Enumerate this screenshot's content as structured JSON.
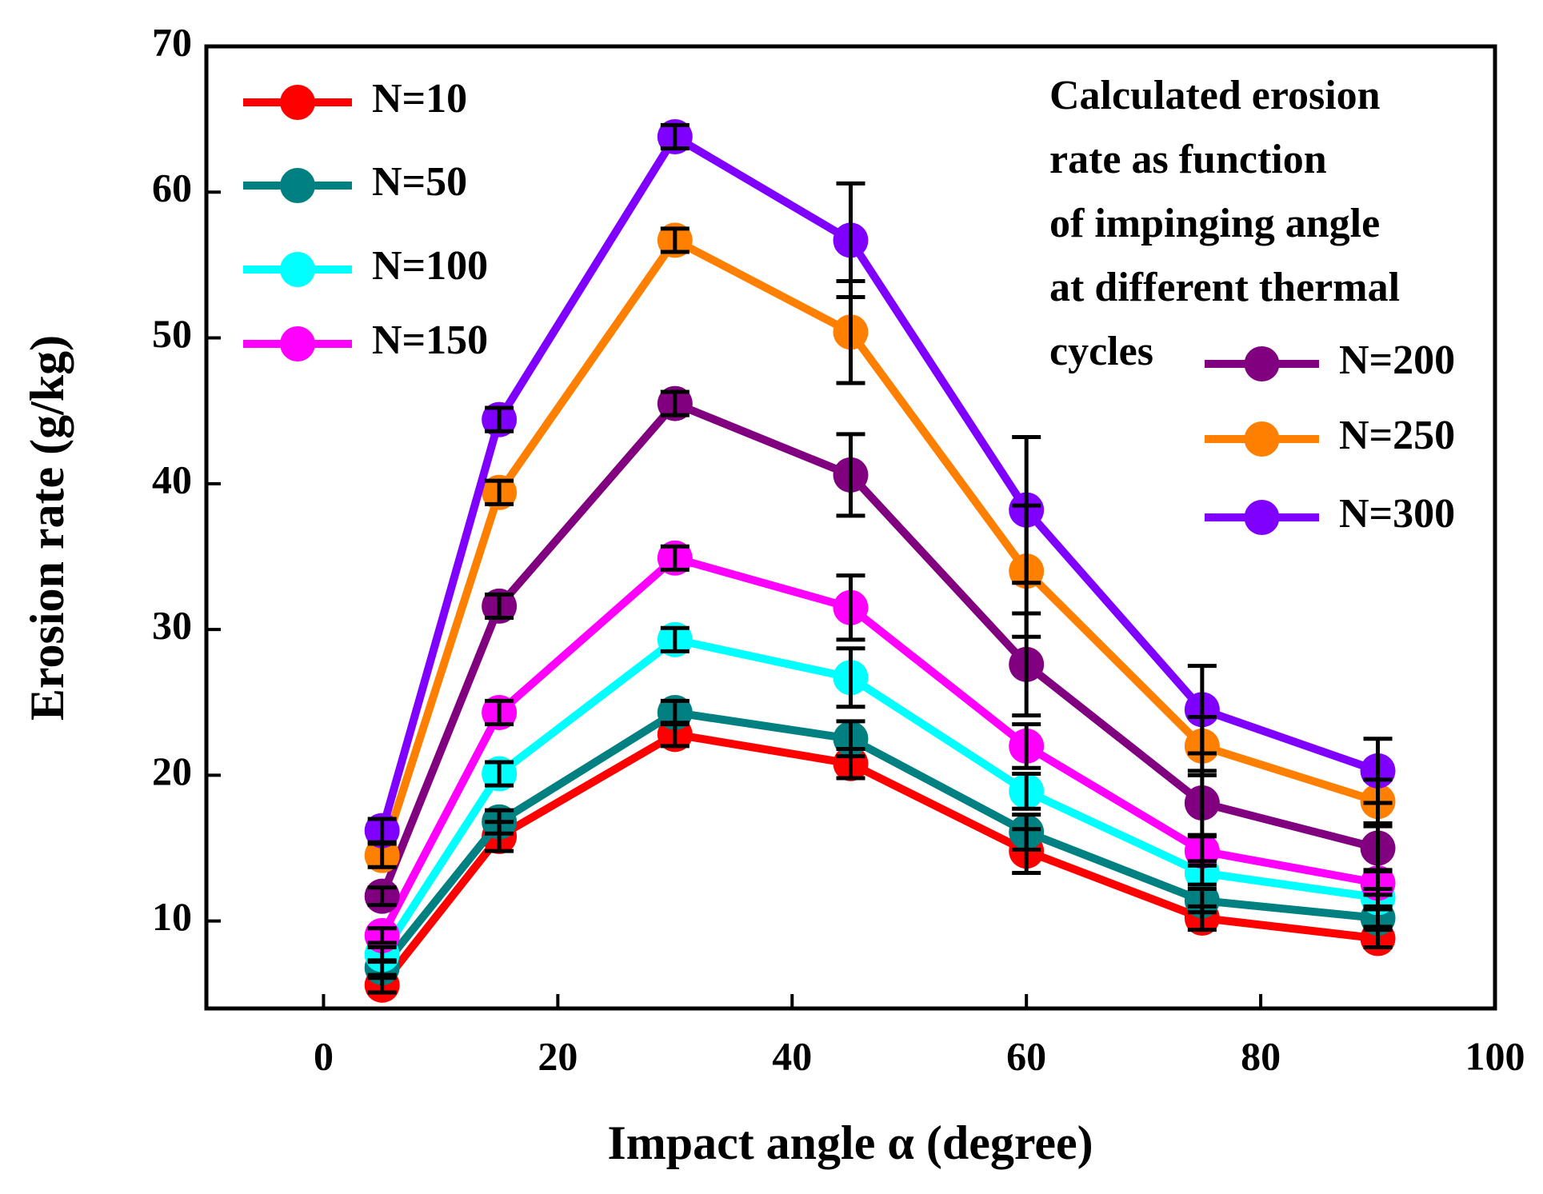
{
  "chart_data": {
    "type": "line",
    "x_label": "Impact angle α (degree)",
    "y_label": "Erosion rate (g/kg)",
    "annotation": [
      "Calculated erosion",
      "rate as function",
      "of impinging angle",
      "at different thermal",
      "cycles"
    ],
    "x": [
      5,
      15,
      30,
      45,
      60,
      75,
      90
    ],
    "xlim": [
      -10,
      100
    ],
    "xticks": [
      0,
      20,
      40,
      60,
      80,
      100
    ],
    "ylim": [
      4,
      70
    ],
    "yticks": [
      10,
      20,
      30,
      40,
      50,
      60,
      70
    ],
    "series": [
      {
        "name": "N=10",
        "color": "#ff0000",
        "values": [
          5.6,
          15.8,
          22.8,
          20.8,
          14.8,
          10.2,
          8.8
        ],
        "errors": [
          0.5,
          1,
          0.8,
          1,
          1.5,
          0.8,
          0.6
        ]
      },
      {
        "name": "N=50",
        "color": "#008080",
        "values": [
          6.8,
          16.8,
          24.3,
          22.5,
          16.1,
          11.4,
          10.2
        ],
        "errors": [
          0.5,
          0.8,
          0.8,
          1.2,
          1.2,
          0.8,
          0.6
        ]
      },
      {
        "name": "N=100",
        "color": "#00ffff",
        "values": [
          7.7,
          20.1,
          29.3,
          26.7,
          18.9,
          13.3,
          11.6
        ],
        "errors": [
          0.5,
          0.8,
          0.8,
          2,
          1.2,
          0.8,
          0.6
        ]
      },
      {
        "name": "N=150",
        "color": "#ff00ff",
        "values": [
          9,
          24.3,
          34.9,
          31.5,
          22,
          14.8,
          12.6
        ],
        "errors": [
          0.5,
          0.8,
          0.8,
          2.2,
          1.5,
          1,
          0.8
        ]
      },
      {
        "name": "N=200",
        "color": "#800080",
        "values": [
          11.7,
          31.6,
          45.5,
          40.6,
          27.6,
          18.1,
          15
        ],
        "errors": [
          0.6,
          0.8,
          0.8,
          2.8,
          3.5,
          2.2,
          1.5
        ]
      },
      {
        "name": "N=250",
        "color": "#ff8000",
        "values": [
          14.5,
          39.4,
          56.7,
          50.4,
          34,
          22,
          18.2
        ],
        "errors": [
          0.8,
          0.8,
          0.8,
          3.5,
          4.5,
          2,
          1.5
        ]
      },
      {
        "name": "N=300",
        "color": "#8000ff",
        "values": [
          16.2,
          44.4,
          63.8,
          56.7,
          38.2,
          24.5,
          20.3
        ],
        "errors": [
          0.8,
          0.8,
          0.8,
          3.9,
          5,
          3,
          2.2
        ]
      }
    ]
  }
}
